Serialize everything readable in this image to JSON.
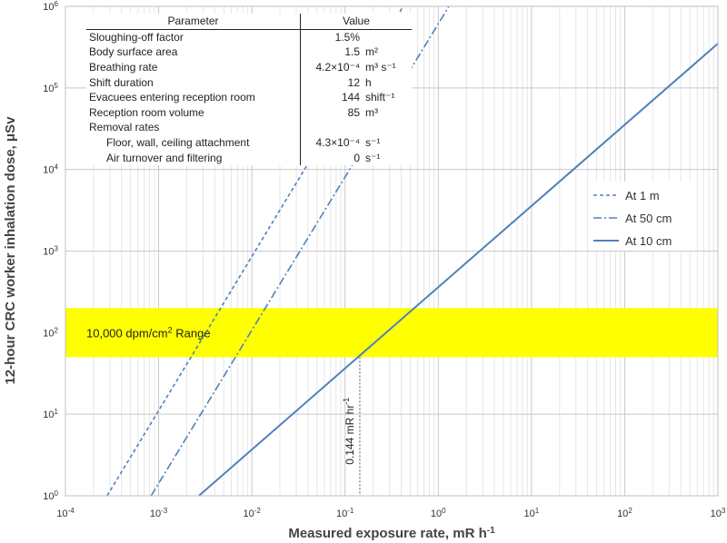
{
  "chart_data": {
    "type": "line",
    "xscale": "log",
    "yscale": "log",
    "xlabel": "Measured exposure rate, mR h",
    "xlabel_sup": "-1",
    "ylabel": "12-hour CRC worker inhalation dose, μSv",
    "xlim": [
      0.0001,
      1000
    ],
    "ylim": [
      1,
      1000000
    ],
    "x_ticks": [
      {
        "base": "10",
        "exp": "-4"
      },
      {
        "base": "10",
        "exp": "-3"
      },
      {
        "base": "10",
        "exp": "-2"
      },
      {
        "base": "10",
        "exp": "-1"
      },
      {
        "base": "10",
        "exp": "0"
      },
      {
        "base": "10",
        "exp": "1"
      },
      {
        "base": "10",
        "exp": "2"
      },
      {
        "base": "10",
        "exp": "3"
      }
    ],
    "y_ticks": [
      {
        "base": "10",
        "exp": "0"
      },
      {
        "base": "10",
        "exp": "1"
      },
      {
        "base": "10",
        "exp": "2"
      },
      {
        "base": "10",
        "exp": "3"
      },
      {
        "base": "10",
        "exp": "4"
      },
      {
        "base": "10",
        "exp": "5"
      },
      {
        "base": "10",
        "exp": "6"
      }
    ],
    "series": [
      {
        "name": "At 1 m",
        "style": "dashed",
        "x": [
          0.00028,
          0.42
        ],
        "y": [
          1,
          1000000
        ]
      },
      {
        "name": "At 50 cm",
        "style": "dashdot",
        "x": [
          0.00083,
          1.3
        ],
        "y": [
          1,
          1000000
        ]
      },
      {
        "name": "At 10 cm",
        "style": "solid",
        "x": [
          0.0027,
          1000
        ],
        "y": [
          1,
          350000
        ]
      }
    ],
    "band": {
      "label": "10,000 dpm/cm",
      "label_sup": "2",
      "label_suffix": " Range",
      "y_range": [
        50,
        200
      ],
      "color": "#ffff00"
    },
    "annotation": {
      "label": "0.144 mR hr",
      "label_sup": "-1",
      "x": 0.144,
      "y": 50
    },
    "line_color": "#4f81bd"
  },
  "table": {
    "header_param": "Parameter",
    "header_value": "Value",
    "rows": [
      {
        "param": "Sloughing-off factor",
        "num": "1.5%",
        "unit": "",
        "indent": false
      },
      {
        "param": "Body surface area",
        "num": "1.5",
        "unit": "m²",
        "indent": false
      },
      {
        "param": "Breathing rate",
        "num": "4.2×10⁻⁴",
        "unit": "m³ s⁻¹",
        "indent": false
      },
      {
        "param": "Shift duration",
        "num": "12",
        "unit": "h",
        "indent": false
      },
      {
        "param": "Evacuees entering reception room",
        "num": "144",
        "unit": "shift⁻¹",
        "indent": false
      },
      {
        "param": "Reception room volume",
        "num": "85",
        "unit": "m³",
        "indent": false
      },
      {
        "param": "Removal rates",
        "num": "",
        "unit": "",
        "indent": false
      },
      {
        "param": "Floor, wall, ceiling attachment",
        "num": "4.3×10⁻⁴",
        "unit": "s⁻¹",
        "indent": true
      },
      {
        "param": "Air turnover and filtering",
        "num": "0",
        "unit": "s⁻¹",
        "indent": true
      }
    ]
  }
}
